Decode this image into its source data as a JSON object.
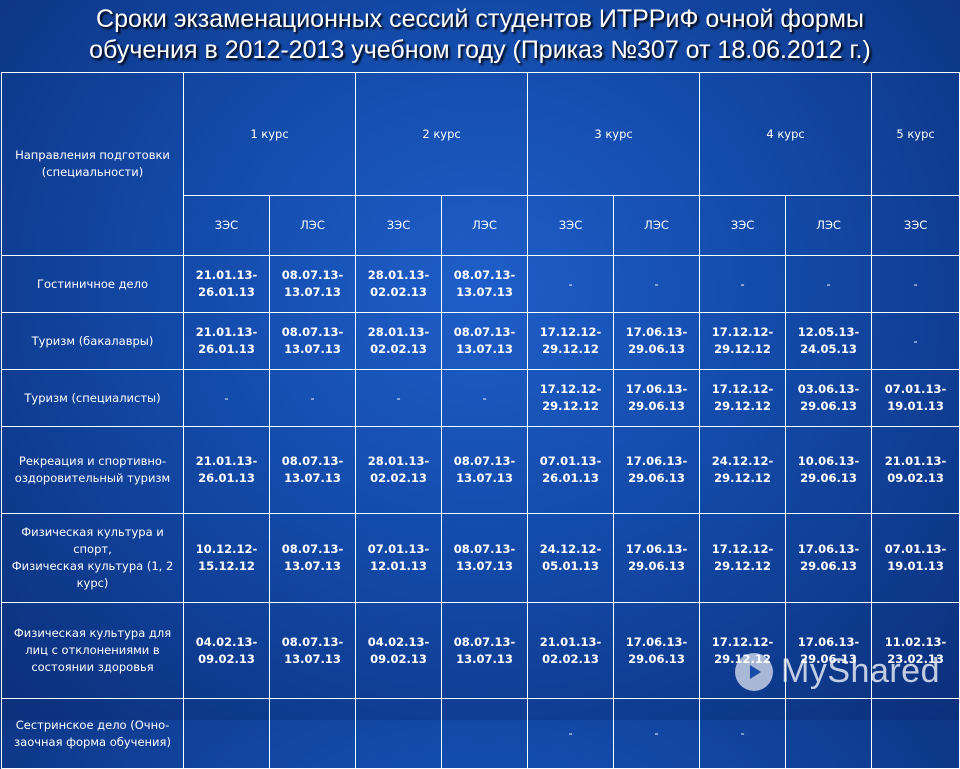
{
  "title_line1": "Сроки экзаменационных сессий студентов ИТРРиФ очной формы",
  "title_line2": "обучения в 2012-2013 учебном году (Приказ №307 от 18.06.2012 г.)",
  "header": {
    "directions_label": "Направления подготовки (специальности)",
    "courses": [
      "1 курс",
      "2 курс",
      "3 курс",
      "4 курс",
      "5 курс"
    ],
    "sessions": [
      "ЗЭС",
      "ЛЭС",
      "ЗЭС",
      "ЛЭС",
      "ЗЭС",
      "ЛЭС",
      "ЗЭС",
      "ЛЭС",
      "ЗЭС"
    ]
  },
  "rows": [
    {
      "name": [
        "Гостиничное дело"
      ],
      "cells": [
        "21.01.13-26.01.13",
        "08.07.13-13.07.13",
        "28.01.13-02.02.13",
        "08.07.13-13.07.13",
        "-",
        "-",
        "-",
        "-",
        "-"
      ]
    },
    {
      "name": [
        "Туризм (бакалавры)"
      ],
      "cells": [
        "21.01.13-26.01.13",
        "08.07.13-13.07.13",
        "28.01.13-02.02.13",
        "08.07.13-13.07.13",
        "17.12.12-29.12.12",
        "17.06.13-29.06.13",
        "17.12.12-29.12.12",
        "12.05.13-24.05.13",
        "-"
      ]
    },
    {
      "name": [
        "Туризм (специалисты)"
      ],
      "cells": [
        "-",
        "-",
        "-",
        "-",
        "17.12.12-29.12.12",
        "17.06.13-29.06.13",
        "17.12.12-29.12.12",
        "03.06.13-29.06.13",
        "07.01.13-19.01.13"
      ]
    },
    {
      "name": [
        "Рекреация и спортивно-оздоровительный туризм"
      ],
      "cells": [
        "21.01.13-26.01.13",
        "08.07.13-13.07.13",
        "28.01.13-02.02.13",
        "08.07.13-13.07.13",
        "07.01.13-26.01.13",
        "17.06.13-29.06.13",
        "24.12.12-29.12.12",
        "10.06.13-29.06.13",
        "21.01.13-09.02.13"
      ]
    },
    {
      "name": [
        "Физическая культура и спорт,",
        "Физическая культура (1, 2 курс)"
      ],
      "cells": [
        "10.12.12-15.12.12",
        "08.07.13-13.07.13",
        "07.01.13-12.01.13",
        "08.07.13-13.07.13",
        "24.12.12-05.01.13",
        "17.06.13-29.06.13",
        "17.12.12-29.12.12",
        "17.06.13-29.06.13",
        "07.01.13-19.01.13"
      ]
    },
    {
      "name": [
        "Физическая культура для лиц с отклонениями в состоянии здоровья"
      ],
      "cells": [
        "04.02.13-09.02.13",
        "08.07.13-13.07.13",
        "04.02.13-09.02.13",
        "08.07.13-13.07.13",
        "21.01.13-02.02.13",
        "17.06.13-29.06.13",
        "17.12.12-29.12.12",
        "17.06.13-29.06.13",
        "11.02.13-23.02.13"
      ]
    },
    {
      "name": [
        "Сестринское дело (Очно-заочная форма обучения)"
      ],
      "cells": [
        "",
        "",
        "",
        "",
        "-",
        "-",
        "-",
        "",
        ""
      ]
    }
  ],
  "watermark": "MyShared"
}
